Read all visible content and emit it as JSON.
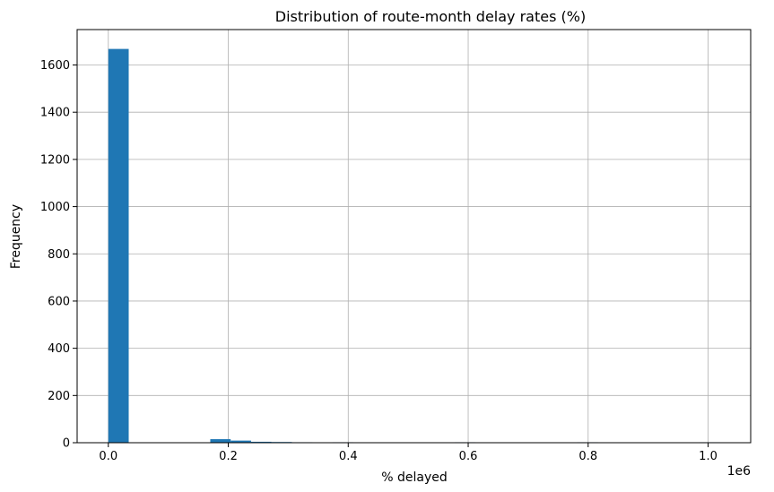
{
  "chart_data": {
    "type": "bar",
    "title": "Distribution of route-month delay rates (%)",
    "xlabel": "% delayed",
    "ylabel": "Frequency",
    "x_offset_label": "1e6",
    "xlim": [
      -52000,
      1071000
    ],
    "ylim": [
      0,
      1750
    ],
    "x_ticks": [
      {
        "value": 0,
        "label": "0.0"
      },
      {
        "value": 200000,
        "label": "0.2"
      },
      {
        "value": 400000,
        "label": "0.4"
      },
      {
        "value": 600000,
        "label": "0.6"
      },
      {
        "value": 800000,
        "label": "0.8"
      },
      {
        "value": 1000000,
        "label": "1.0"
      }
    ],
    "y_ticks": [
      0,
      200,
      400,
      600,
      800,
      1000,
      1200,
      1400,
      1600
    ],
    "grid": true,
    "bar_color": "#1f77b4",
    "bins": [
      {
        "start": 0,
        "end": 34000,
        "count": 1668
      },
      {
        "start": 170000,
        "end": 204000,
        "count": 15
      },
      {
        "start": 204000,
        "end": 238000,
        "count": 9
      },
      {
        "start": 238000,
        "end": 272000,
        "count": 4
      },
      {
        "start": 272000,
        "end": 306000,
        "count": 3
      },
      {
        "start": 306000,
        "end": 340000,
        "count": 2
      },
      {
        "start": 374000,
        "end": 408000,
        "count": 2
      },
      {
        "start": 408000,
        "end": 442000,
        "count": 1
      },
      {
        "start": 578000,
        "end": 612000,
        "count": 2
      },
      {
        "start": 612000,
        "end": 646000,
        "count": 1
      },
      {
        "start": 782000,
        "end": 816000,
        "count": 2
      },
      {
        "start": 986000,
        "end": 1020000,
        "count": 2
      }
    ]
  }
}
